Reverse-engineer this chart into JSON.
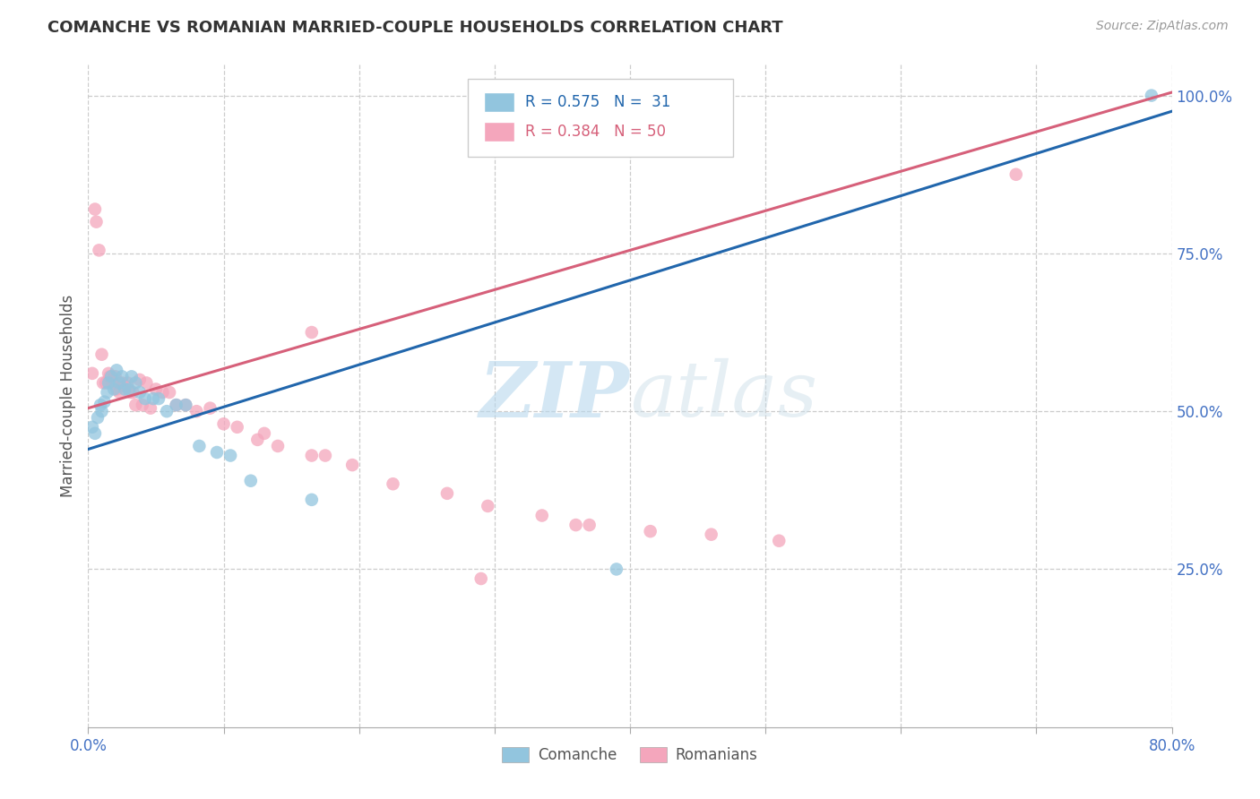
{
  "title": "COMANCHE VS ROMANIAN MARRIED-COUPLE HOUSEHOLDS CORRELATION CHART",
  "source": "Source: ZipAtlas.com",
  "ylabel": "Married-couple Households",
  "x_min": 0.0,
  "x_max": 0.8,
  "y_min": 0.0,
  "y_max": 1.05,
  "y_ticks_right": [
    0.25,
    0.5,
    0.75,
    1.0
  ],
  "y_tick_labels_right": [
    "25.0%",
    "50.0%",
    "75.0%",
    "100.0%"
  ],
  "comanche_color": "#92c5de",
  "romanian_color": "#f4a6bc",
  "line_comanche_color": "#2166ac",
  "line_romanian_color": "#d6607a",
  "watermark_zip": "ZIP",
  "watermark_atlas": "atlas",
  "comanche_line_x": [
    0.0,
    0.8
  ],
  "comanche_line_y": [
    0.44,
    0.975
  ],
  "romanian_line_x": [
    0.0,
    0.8
  ],
  "romanian_line_y": [
    0.505,
    1.005
  ],
  "comanche_points_x": [
    0.003,
    0.005,
    0.007,
    0.009,
    0.01,
    0.012,
    0.014,
    0.015,
    0.017,
    0.019,
    0.021,
    0.023,
    0.025,
    0.027,
    0.03,
    0.032,
    0.035,
    0.038,
    0.042,
    0.048,
    0.052,
    0.058,
    0.065,
    0.072,
    0.082,
    0.095,
    0.105,
    0.12,
    0.165,
    0.39,
    0.785
  ],
  "comanche_points_y": [
    0.475,
    0.465,
    0.49,
    0.51,
    0.5,
    0.515,
    0.53,
    0.545,
    0.555,
    0.535,
    0.565,
    0.545,
    0.555,
    0.535,
    0.535,
    0.555,
    0.545,
    0.53,
    0.52,
    0.52,
    0.52,
    0.5,
    0.51,
    0.51,
    0.445,
    0.435,
    0.43,
    0.39,
    0.36,
    0.25,
    1.0
  ],
  "romanian_points_x": [
    0.003,
    0.005,
    0.006,
    0.008,
    0.01,
    0.011,
    0.013,
    0.015,
    0.016,
    0.018,
    0.02,
    0.021,
    0.023,
    0.025,
    0.027,
    0.029,
    0.031,
    0.033,
    0.035,
    0.038,
    0.04,
    0.043,
    0.046,
    0.05,
    0.055,
    0.06,
    0.065,
    0.072,
    0.08,
    0.09,
    0.1,
    0.11,
    0.125,
    0.14,
    0.165,
    0.195,
    0.225,
    0.265,
    0.295,
    0.335,
    0.37,
    0.415,
    0.46,
    0.51,
    0.165,
    0.29,
    0.36,
    0.175,
    0.13,
    0.685
  ],
  "romanian_points_y": [
    0.56,
    0.82,
    0.8,
    0.755,
    0.59,
    0.545,
    0.545,
    0.56,
    0.555,
    0.545,
    0.555,
    0.535,
    0.53,
    0.545,
    0.54,
    0.545,
    0.53,
    0.53,
    0.51,
    0.55,
    0.51,
    0.545,
    0.505,
    0.535,
    0.53,
    0.53,
    0.51,
    0.51,
    0.5,
    0.505,
    0.48,
    0.475,
    0.455,
    0.445,
    0.43,
    0.415,
    0.385,
    0.37,
    0.35,
    0.335,
    0.32,
    0.31,
    0.305,
    0.295,
    0.625,
    0.235,
    0.32,
    0.43,
    0.465,
    0.875
  ]
}
